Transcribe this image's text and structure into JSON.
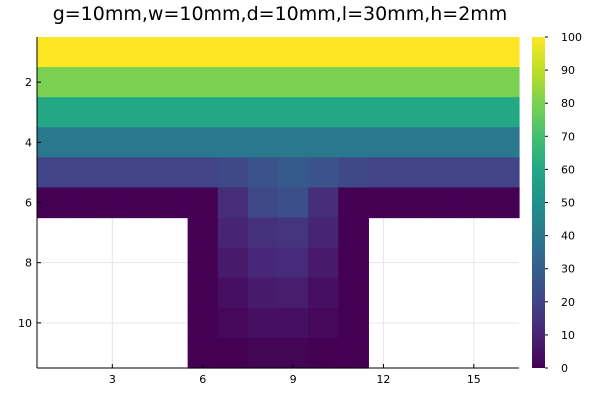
{
  "chart_data": {
    "type": "heatmap",
    "title": "g=10mm,w=10mm,d=10mm,l=30mm,h=2mm",
    "xlabel": "",
    "ylabel": "",
    "grid": true,
    "colormap": "viridis",
    "x_range": [
      0.5,
      16.5
    ],
    "y_range": [
      0.5,
      11.5
    ],
    "y_reversed": true,
    "x_ticks": [
      3,
      6,
      9,
      12,
      15
    ],
    "y_ticks": [
      2,
      4,
      6,
      8,
      10
    ],
    "colorbar": {
      "range": [
        0,
        100
      ],
      "ticks": [
        0,
        10,
        20,
        30,
        40,
        50,
        60,
        70,
        80,
        90,
        100
      ]
    },
    "columns": 16,
    "rows": 11,
    "missing": null,
    "values": [
      [
        100,
        100,
        100,
        100,
        100,
        100,
        100,
        100,
        100,
        100,
        100,
        100,
        100,
        100,
        100,
        100
      ],
      [
        80,
        80,
        80,
        80,
        80,
        80,
        80,
        80,
        80,
        80,
        80,
        80,
        80,
        80,
        80,
        80
      ],
      [
        60,
        60,
        60,
        60,
        60,
        60,
        60,
        60,
        60,
        60,
        60,
        60,
        60,
        60,
        60,
        60
      ],
      [
        40,
        40,
        40,
        40,
        40,
        40,
        40,
        40,
        40,
        40,
        40,
        40,
        40,
        40,
        40,
        40
      ],
      [
        20,
        20,
        20,
        20,
        20,
        20,
        22,
        26,
        28,
        26,
        22,
        20,
        20,
        20,
        20,
        20
      ],
      [
        0,
        0,
        0,
        0,
        0,
        0,
        13,
        22,
        24,
        13,
        0,
        0,
        0,
        0,
        0,
        0
      ],
      [
        null,
        null,
        null,
        null,
        null,
        0,
        10,
        14,
        15,
        10,
        0,
        null,
        null,
        null,
        null,
        null
      ],
      [
        null,
        null,
        null,
        null,
        null,
        0,
        7,
        11,
        12,
        7,
        0,
        null,
        null,
        null,
        null,
        null
      ],
      [
        null,
        null,
        null,
        null,
        null,
        0,
        4,
        7,
        8,
        4,
        0,
        null,
        null,
        null,
        null,
        null
      ],
      [
        null,
        null,
        null,
        null,
        null,
        0,
        2,
        4,
        4,
        2,
        0,
        null,
        null,
        null,
        null,
        null
      ],
      [
        null,
        null,
        null,
        null,
        null,
        0,
        0,
        1,
        1,
        0,
        0,
        null,
        null,
        null,
        null,
        null
      ]
    ]
  }
}
